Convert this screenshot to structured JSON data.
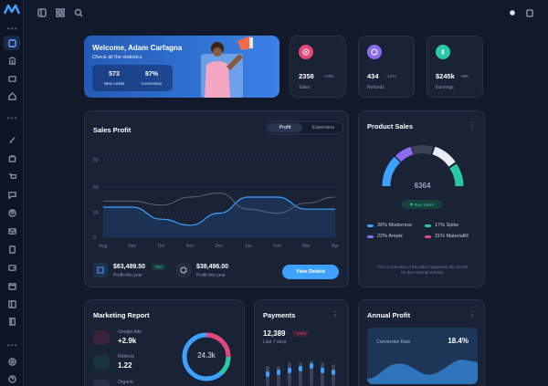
{
  "topbar": {
    "icons": [
      "menu-icon",
      "grid-icon",
      "search-icon",
      "sun-icon",
      "cart-icon"
    ]
  },
  "sidebar": {
    "dots_top": "•••",
    "dots_mid": "•••",
    "dots_bottom": "•••"
  },
  "welcome": {
    "title": "Welcome, Adam Carfagna",
    "subtitle": "Check all the statistics",
    "leads_value": "573",
    "leads_label": "New Leads",
    "conversion_value": "87%",
    "conversion_label": "Conversion"
  },
  "stats": [
    {
      "value": "2358",
      "change": "+23%",
      "label": "Sales",
      "color": "#e5477a",
      "icon": "target-icon"
    },
    {
      "value": "434",
      "change": "-12%",
      "label": "Refunds",
      "color": "#8b6cf0",
      "icon": "refund-icon"
    },
    {
      "value": "$245k",
      "change": "+8%",
      "label": "Earnings",
      "color": "#2bc8a4",
      "icon": "dollar-icon"
    }
  ],
  "sales_profit": {
    "title": "Sales Profit",
    "tab_profit": "Profit",
    "tab_expenses": "Expenses",
    "profit_value": "$63,489.50",
    "profit_badge": "+8%",
    "profit_label": "Profit this year",
    "lastyear_value": "$38,496.00",
    "lastyear_label": "Profit this year",
    "button": "View Details"
  },
  "chart_data": {
    "type": "line",
    "categories": [
      "Aug",
      "Sep",
      "Oct",
      "Nov",
      "Dec",
      "Jan",
      "Feb",
      "Mar",
      "Apr"
    ],
    "y_ticks": [
      "80",
      "60",
      "20",
      "0"
    ],
    "ylim": [
      0,
      80
    ],
    "series": [
      {
        "values": [
          30,
          30,
          18,
          12,
          24,
          40,
          40,
          28,
          28
        ],
        "color": "#3ea0ff"
      },
      {
        "values": [
          36,
          36,
          32,
          40,
          44,
          28,
          24,
          34,
          40
        ],
        "color": "#5a6378"
      }
    ]
  },
  "product_sales": {
    "title": "Product Sales",
    "total": "6364",
    "badge": "Best Seller",
    "legend": [
      {
        "label": "36% Modernize",
        "color": "#3ea0ff"
      },
      {
        "label": "17% Spike",
        "color": "#2bc8a4"
      },
      {
        "label": "22% Ample",
        "color": "#8b6cf0"
      },
      {
        "label": "31% MaterialM",
        "color": "#e5477a"
      }
    ],
    "footnote": "This is overview of the sales happened this month for the material website"
  },
  "marketing": {
    "title": "Marketing Report",
    "items": [
      {
        "label": "Google Ads",
        "value": "+2.9k"
      },
      {
        "label": "Referral",
        "value": "1.22"
      },
      {
        "label": "Organic",
        "value": ""
      }
    ],
    "center": "24.3k"
  },
  "payments": {
    "title": "Payments",
    "value": "12,389",
    "badge": "-3.8%",
    "sub": "Last 7 days"
  },
  "annual_profit": {
    "title": "Annual Profit",
    "label": "Conversion Rate",
    "value": "18.4%"
  }
}
